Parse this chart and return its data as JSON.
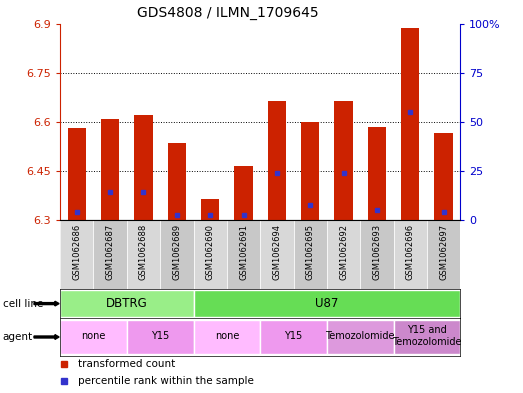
{
  "title": "GDS4808 / ILMN_1709645",
  "samples": [
    "GSM1062686",
    "GSM1062687",
    "GSM1062688",
    "GSM1062689",
    "GSM1062690",
    "GSM1062691",
    "GSM1062694",
    "GSM1062695",
    "GSM1062692",
    "GSM1062693",
    "GSM1062696",
    "GSM1062697"
  ],
  "bar_values": [
    6.58,
    6.61,
    6.62,
    6.535,
    6.365,
    6.465,
    6.665,
    6.6,
    6.665,
    6.585,
    6.885,
    6.565
  ],
  "percentile_values": [
    6.325,
    6.385,
    6.385,
    6.315,
    6.315,
    6.315,
    6.445,
    6.345,
    6.445,
    6.33,
    6.63,
    6.325
  ],
  "bar_color": "#cc2200",
  "percentile_color": "#3333cc",
  "y_min": 6.3,
  "y_max": 6.9,
  "y_ticks": [
    6.3,
    6.45,
    6.6,
    6.75,
    6.9
  ],
  "y_tick_labels": [
    "6.3",
    "6.45",
    "6.6",
    "6.75",
    "6.9"
  ],
  "y2_ticks": [
    0,
    25,
    50,
    75,
    100
  ],
  "y2_tick_labels": [
    "0",
    "25",
    "50",
    "75",
    "100%"
  ],
  "cell_line_groups": [
    {
      "label": "DBTRG",
      "start": 0,
      "end": 4,
      "color": "#99ee88"
    },
    {
      "label": "U87",
      "start": 4,
      "end": 12,
      "color": "#66dd55"
    }
  ],
  "agent_groups": [
    {
      "label": "none",
      "start": 0,
      "end": 2,
      "color": "#ffbbff"
    },
    {
      "label": "Y15",
      "start": 2,
      "end": 4,
      "color": "#ee99ee"
    },
    {
      "label": "none",
      "start": 4,
      "end": 6,
      "color": "#ffbbff"
    },
    {
      "label": "Y15",
      "start": 6,
      "end": 8,
      "color": "#ee99ee"
    },
    {
      "label": "Temozolomide",
      "start": 8,
      "end": 10,
      "color": "#dd99dd"
    },
    {
      "label": "Y15 and\nTemozolomide",
      "start": 10,
      "end": 12,
      "color": "#cc88cc"
    }
  ],
  "bar_width": 0.55,
  "cell_line_label": "cell line",
  "agent_label": "agent",
  "sample_bg_color": "#d0d0d0",
  "legend_items": [
    {
      "label": "transformed count",
      "color": "#cc2200"
    },
    {
      "label": "percentile rank within the sample",
      "color": "#3333cc"
    }
  ]
}
